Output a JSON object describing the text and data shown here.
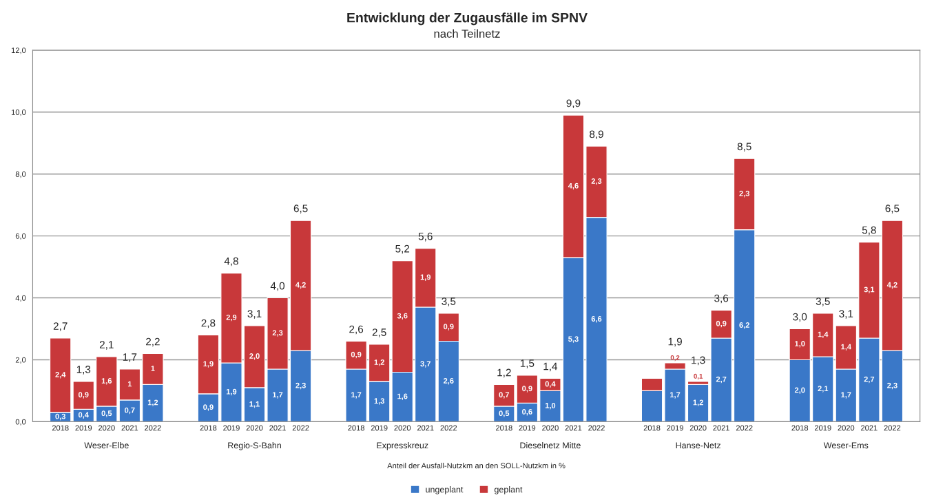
{
  "chart_data": {
    "type": "bar",
    "title": "Entwicklung der Zugausfälle im SPNV",
    "subtitle": "nach Teilnetz",
    "xlabel": "Anteil der Ausfall-Nutzkm an den SOLL-Nutzkm in %",
    "annotations": [
      "Weser-Elbe",
      "Regio-S-Bahn",
      "Expresskreuz",
      "Dieselnetz Mitte",
      "Hanse-Netz",
      "Weser-Ems"
    ],
    "categories": [
      "2018",
      "2019",
      "2020",
      "2021",
      "2022",
      "2018",
      "2019",
      "2020",
      "2021",
      "2022",
      "2018",
      "2019",
      "2020",
      "2021",
      "2022",
      "2018",
      "2019",
      "2020",
      "2021",
      "2022",
      "2018",
      "2019",
      "2020",
      "2021",
      "2022",
      "2018",
      "2019",
      "2020",
      "2021",
      "2022"
    ],
    "stacked": true,
    "series": [
      {
        "name": "ungeplant",
        "color": "#3a78c8",
        "values": [
          0.3,
          0.4,
          0.5,
          0.7,
          1.2,
          0.9,
          1.9,
          1.1,
          1.7,
          2.3,
          1.7,
          1.3,
          1.6,
          3.7,
          2.6,
          0.5,
          0.6,
          1.0,
          5.3,
          6.6,
          1.0,
          1.7,
          1.2,
          2.7,
          6.2,
          2.0,
          2.1,
          1.7,
          2.7,
          2.3
        ],
        "value_labels": [
          "0,3",
          "0,4",
          "0,5",
          "0,7",
          "1,2",
          "0,9",
          "1,9",
          "1,1",
          "1,7",
          "2,3",
          "1,7",
          "1,3",
          "1,6",
          "3,7",
          "2,6",
          "0,5",
          "0,6",
          "1,0",
          "5,3",
          "6,6",
          null,
          "1,7",
          "1,2",
          "2,7",
          "6,2",
          "2,0",
          "2,1",
          "1,7",
          "2,7",
          "2,3"
        ]
      },
      {
        "name": "geplant",
        "color": "#c8383a",
        "values": [
          2.4,
          0.9,
          1.6,
          1,
          1,
          1.9,
          2.9,
          2.0,
          2.3,
          4.2,
          0.9,
          1.2,
          3.6,
          1.9,
          0.9,
          0.7,
          0.9,
          0.4,
          4.6,
          2.3,
          0.4,
          0.2,
          0.1,
          0.9,
          2.3,
          1.0,
          1.4,
          1.4,
          3.1,
          4.2
        ],
        "value_labels": [
          "2,4",
          "0,9",
          "1,6",
          "1",
          "1",
          "1,9",
          "2,9",
          "2,0",
          "2,3",
          "4,2",
          "0,9",
          "1,2",
          "3,6",
          "1,9",
          "0,9",
          "0,7",
          "0,9",
          "0,4",
          "4,6",
          "2,3",
          null,
          "0,2",
          "0,1",
          "0,9",
          "2,3",
          "1,0",
          "1,4",
          "1,4",
          "3,1",
          "4,2"
        ]
      }
    ],
    "totals": [
      "2,7",
      "1,3",
      "2,1",
      "1,7",
      "2,2",
      "2,8",
      "4,8",
      "3,1",
      "4,0",
      "6,5",
      "2,6",
      "2,5",
      "5,2",
      "5,6",
      "3,5",
      "1,2",
      "1,5",
      "1,4",
      "9,9",
      "8,9",
      null,
      "1,9",
      "1,3",
      "3,6",
      "8,5",
      "3,0",
      "3,5",
      "3,1",
      "5,8",
      "6,5"
    ],
    "ylim": [
      0,
      12
    ],
    "yticks": [
      {
        "value": 0,
        "label": "0,0"
      },
      {
        "value": 2,
        "label": "2,0"
      },
      {
        "value": 4,
        "label": "4,0"
      },
      {
        "value": 6,
        "label": "6,0"
      },
      {
        "value": 8,
        "label": "8,0"
      },
      {
        "value": 10,
        "label": "10,0"
      },
      {
        "value": 12,
        "label": "12,0"
      }
    ],
    "grid": "y",
    "legend": "bottom"
  }
}
